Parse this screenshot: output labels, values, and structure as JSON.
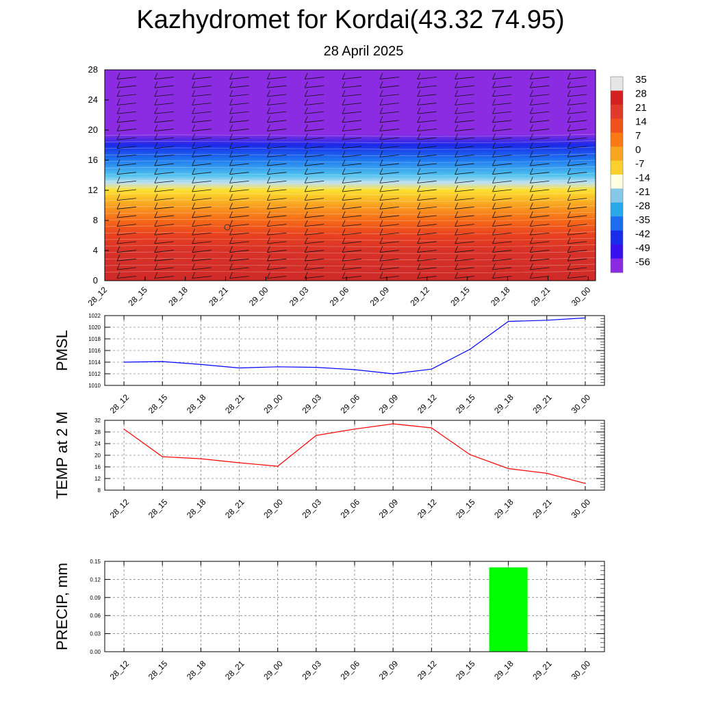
{
  "title": "Kazhydromet for Kordai(43.32 74.95)",
  "subtitle": "28 April 2025",
  "chart_data": [
    {
      "type": "heatmap",
      "name": "vertical cross-section",
      "x_categories": [
        "28_12",
        "28_15",
        "28_18",
        "28_21",
        "29_00",
        "29_03",
        "29_06",
        "29_09",
        "29_12",
        "29_15",
        "29_18",
        "29_21",
        "30_00"
      ],
      "yticks": [
        0,
        4,
        8,
        12,
        16,
        20,
        24,
        28
      ],
      "ylim": [
        0,
        28
      ],
      "colorbar_labels": [
        "35",
        "28",
        "21",
        "14",
        "7",
        "0",
        "-7",
        "-14",
        "-21",
        "-28",
        "-35",
        "-42",
        "-49",
        "-56"
      ],
      "colorbar_colors": [
        "#e6e6e6",
        "#d42020",
        "#e03a2a",
        "#f0521e",
        "#f77a17",
        "#f8a520",
        "#fbd02e",
        "#fefee0",
        "#86c8e8",
        "#2aa8e8",
        "#1e6cf0",
        "#1a2ceb",
        "#3a10f0",
        "#8a2be2"
      ],
      "layers": [
        {
          "h": 0,
          "color": "#cf2a28"
        },
        {
          "h": 4,
          "color": "#d83228"
        },
        {
          "h": 6,
          "color": "#e84020"
        },
        {
          "h": 8,
          "color": "#f56a18"
        },
        {
          "h": 10,
          "color": "#f8a020"
        },
        {
          "h": 12,
          "color": "#fde12f"
        },
        {
          "h": 13,
          "color": "#c0e0f0"
        },
        {
          "h": 14,
          "color": "#4fc2ee"
        },
        {
          "h": 16,
          "color": "#1e7aef"
        },
        {
          "h": 18,
          "color": "#1a2ae8"
        },
        {
          "h": 19.5,
          "color": "#8b2be2"
        },
        {
          "h": 28,
          "color": "#8b2be2"
        }
      ]
    },
    {
      "type": "line",
      "ylabel": "PMSL",
      "categories": [
        "28_12",
        "28_15",
        "28_18",
        "28_21",
        "29_00",
        "29_03",
        "29_06",
        "29_09",
        "29_12",
        "29_15",
        "29_18",
        "29_21",
        "30_00"
      ],
      "values": [
        1014.0,
        1014.1,
        1013.6,
        1013.0,
        1013.2,
        1013.1,
        1012.7,
        1012.0,
        1012.8,
        1016.2,
        1021.0,
        1021.2,
        1021.6
      ],
      "ylim": [
        1010,
        1022
      ],
      "yticks": [
        "1010",
        "1012",
        "1014",
        "1016",
        "1018",
        "1020",
        "1022"
      ],
      "color": "#0000ff",
      "grid": true
    },
    {
      "type": "line",
      "ylabel": "TEMP at 2 M",
      "categories": [
        "28_12",
        "28_15",
        "28_18",
        "28_21",
        "29_00",
        "29_03",
        "29_06",
        "29_09",
        "29_12",
        "29_15",
        "29_18",
        "29_21",
        "30_00"
      ],
      "values": [
        29,
        19.5,
        18.8,
        17.4,
        16.2,
        26.8,
        29.0,
        30.8,
        29.4,
        20.2,
        15.4,
        13.8,
        10.3
      ],
      "ylim": [
        8,
        32
      ],
      "yticks": [
        "8",
        "12",
        "16",
        "20",
        "24",
        "28",
        "32"
      ],
      "color": "#ff0000",
      "grid": true
    },
    {
      "type": "bar",
      "ylabel": "PRECIP, mm",
      "categories": [
        "28_12",
        "28_15",
        "28_18",
        "28_21",
        "29_00",
        "29_03",
        "29_06",
        "29_09",
        "29_12",
        "29_15",
        "29_18",
        "29_21",
        "30_00"
      ],
      "values": [
        0,
        0,
        0,
        0,
        0,
        0,
        0,
        0,
        0,
        0,
        0.14,
        0,
        0
      ],
      "ylim": [
        0,
        0.15
      ],
      "yticks": [
        "0.00",
        "0.03",
        "0.06",
        "0.09",
        "0.12",
        "0.15"
      ],
      "color": "#00ff00",
      "grid": true
    }
  ]
}
